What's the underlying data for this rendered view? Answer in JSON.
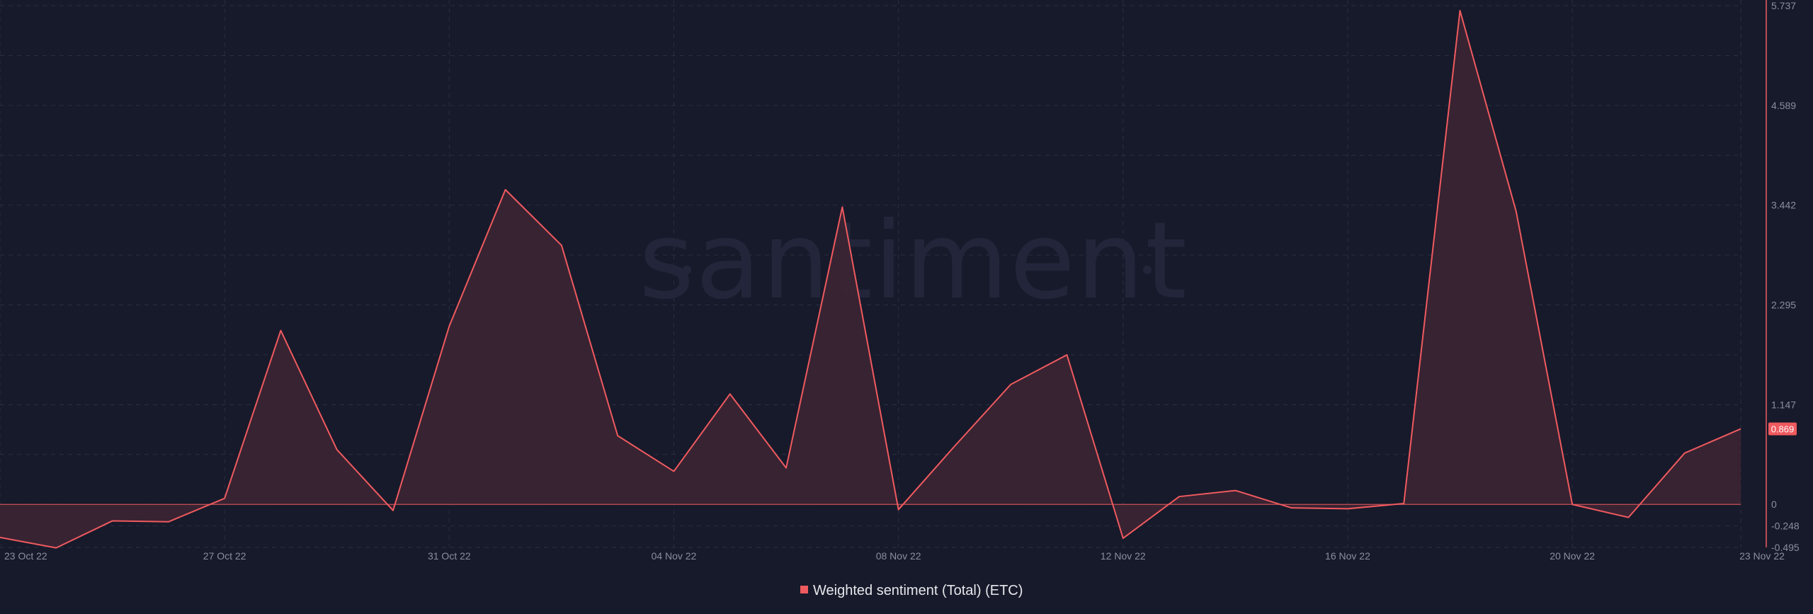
{
  "watermark": "santiment",
  "chart_data": {
    "type": "area",
    "x": [
      "23 Oct 22",
      "24 Oct 22",
      "25 Oct 22",
      "26 Oct 22",
      "27 Oct 22",
      "28 Oct 22",
      "29 Oct 22",
      "30 Oct 22",
      "31 Oct 22",
      "01 Nov 22",
      "02 Nov 22",
      "03 Nov 22",
      "04 Nov 22",
      "05 Nov 22",
      "06 Nov 22",
      "07 Nov 22",
      "08 Nov 22",
      "09 Nov 22",
      "10 Nov 22",
      "11 Nov 22",
      "12 Nov 22",
      "13 Nov 22",
      "14 Nov 22",
      "15 Nov 22",
      "16 Nov 22",
      "17 Nov 22",
      "18 Nov 22",
      "19 Nov 22",
      "20 Nov 22",
      "21 Nov 22",
      "22 Nov 22",
      "23 Nov 22"
    ],
    "series": [
      {
        "name": "Weighted sentiment (Total) (ETC)",
        "color": "#ef5a5f",
        "values": [
          -0.38,
          -0.5,
          -0.19,
          -0.2,
          0.07,
          2.0,
          0.63,
          -0.07,
          2.05,
          3.62,
          2.98,
          0.79,
          0.38,
          1.27,
          0.42,
          3.42,
          -0.06,
          0.67,
          1.38,
          1.72,
          -0.39,
          0.09,
          0.16,
          -0.04,
          -0.05,
          0.01,
          5.68,
          3.37,
          0.0,
          -0.15,
          0.59,
          0.869
        ]
      }
    ],
    "x_tick_labels": [
      "23 Oct 22",
      "27 Oct 22",
      "31 Oct 22",
      "04 Nov 22",
      "08 Nov 22",
      "12 Nov 22",
      "16 Nov 22",
      "20 Nov 22",
      "23 Nov 22"
    ],
    "y_tick_labels": [
      "5.737",
      "4.589",
      "3.442",
      "2.295",
      "1.147",
      "0",
      "-0.248",
      "-0.495"
    ],
    "y_ticks": [
      5.737,
      4.589,
      3.442,
      2.295,
      1.147,
      0,
      -0.248,
      -0.495
    ],
    "ylim": [
      -0.495,
      5.737
    ],
    "last_value_label": "0.869",
    "last_value": 0.869,
    "grid": true,
    "legend_position": "bottom-center",
    "title": "",
    "xlabel": "",
    "ylabel": ""
  },
  "colors": {
    "background": "#171a2a",
    "line": "#ef5a5f",
    "area_fill": "#3a2433",
    "grid": "#2a2e42",
    "axis_line": "#ef5a5f",
    "badge": "#ef5a5f"
  }
}
